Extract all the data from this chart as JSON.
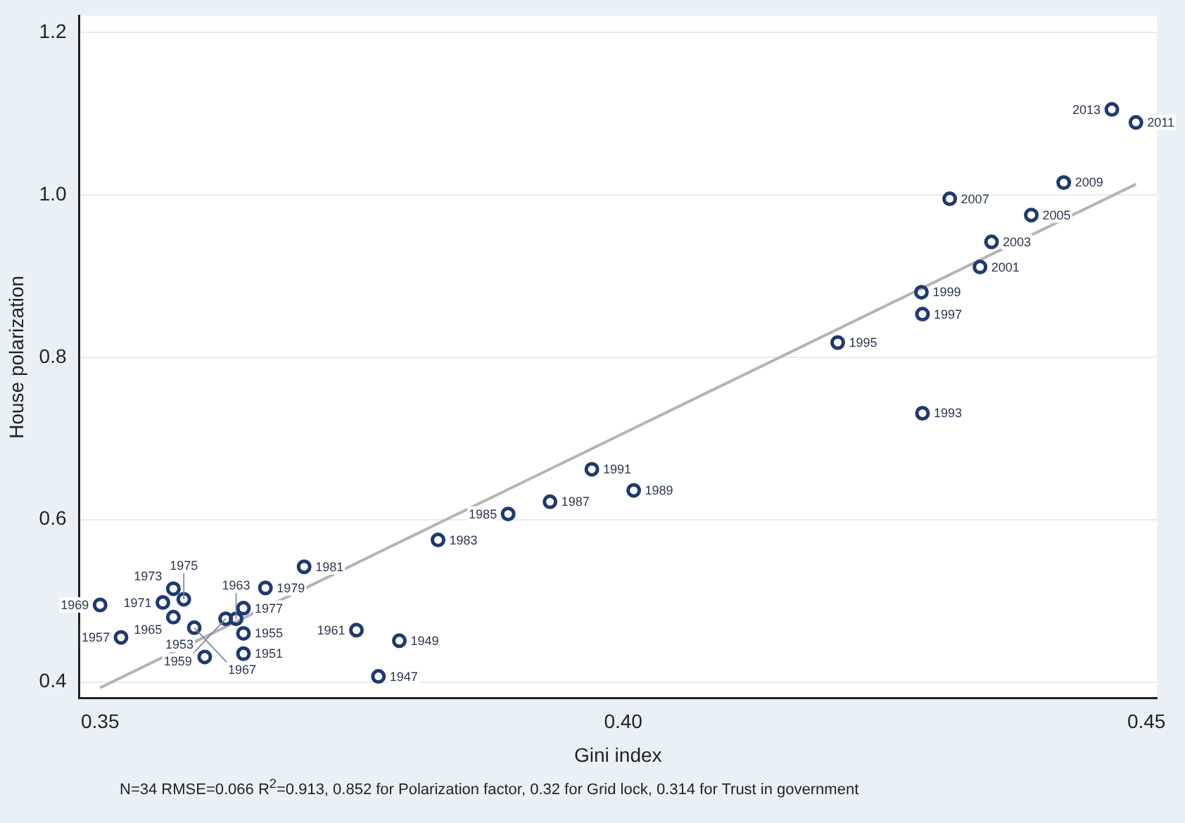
{
  "chart_data": {
    "type": "scatter",
    "xlabel": "Gini index",
    "ylabel": "House polarization",
    "xlim": [
      0.348,
      0.451
    ],
    "ylim": [
      0.38,
      1.22
    ],
    "xticks": [
      0.35,
      {
        "value": 0.4,
        "label": "0.40"
      },
      0.45
    ],
    "yticks": [
      0.4,
      0.6,
      0.8,
      {
        "value": 1.0,
        "label": "1.0"
      },
      1.2
    ],
    "grid": "y",
    "legend": false,
    "marker": "circle",
    "series": [
      {
        "type": "scatter",
        "color": "#1f3a6e",
        "x": [
          0.35,
          0.352,
          0.357,
          0.356,
          0.358,
          0.357,
          0.359,
          0.36,
          0.362,
          0.363,
          0.3637,
          0.3658,
          0.3637,
          0.3637,
          0.3695,
          0.3745,
          0.3786,
          0.3766,
          0.3823,
          0.389,
          0.393,
          0.397,
          0.401,
          0.4205,
          0.4286,
          0.4285,
          0.4341,
          0.4352,
          0.439,
          0.4312,
          0.4421,
          0.449,
          0.4467,
          0.4286
        ],
        "values": [
          0.495,
          0.455,
          0.515,
          0.498,
          0.502,
          0.48,
          0.467,
          0.431,
          0.478,
          0.478,
          0.491,
          0.516,
          0.46,
          0.435,
          0.542,
          0.464,
          0.451,
          0.407,
          0.575,
          0.607,
          0.622,
          0.662,
          0.636,
          0.818,
          0.853,
          0.88,
          0.911,
          0.942,
          0.975,
          0.995,
          1.015,
          1.089,
          1.105,
          0.731
        ]
      },
      {
        "type": "line",
        "color": "#b4b4b4",
        "marker": "none",
        "x": [
          0.35,
          0.449
        ],
        "values": [
          0.393,
          1.013
        ]
      }
    ],
    "annotations": [
      {
        "text": "1969",
        "x": 0.35,
        "y": 0.495
      },
      {
        "text": "1957",
        "x": 0.352,
        "y": 0.455
      },
      {
        "text": "1973",
        "x": 0.357,
        "y": 0.515
      },
      {
        "text": "1971",
        "x": 0.356,
        "y": 0.498
      },
      {
        "text": "1975",
        "x": 0.358,
        "y": 0.502
      },
      {
        "text": "1965",
        "x": 0.357,
        "y": 0.48
      },
      {
        "text": "1967",
        "x": 0.359,
        "y": 0.467
      },
      {
        "text": "1953",
        "x": 0.36,
        "y": 0.431
      },
      {
        "text": "1959",
        "x": 0.362,
        "y": 0.478
      },
      {
        "text": "1963",
        "x": 0.363,
        "y": 0.478
      },
      {
        "text": "1977",
        "x": 0.3637,
        "y": 0.491
      },
      {
        "text": "1979",
        "x": 0.3658,
        "y": 0.516
      },
      {
        "text": "1955",
        "x": 0.3637,
        "y": 0.46
      },
      {
        "text": "1951",
        "x": 0.3637,
        "y": 0.435
      },
      {
        "text": "1981",
        "x": 0.3695,
        "y": 0.542
      },
      {
        "text": "1961",
        "x": 0.3745,
        "y": 0.464
      },
      {
        "text": "1949",
        "x": 0.3786,
        "y": 0.451
      },
      {
        "text": "1947",
        "x": 0.3766,
        "y": 0.407
      },
      {
        "text": "1983",
        "x": 0.3823,
        "y": 0.575
      },
      {
        "text": "1985",
        "x": 0.389,
        "y": 0.607
      },
      {
        "text": "1987",
        "x": 0.393,
        "y": 0.622
      },
      {
        "text": "1991",
        "x": 0.397,
        "y": 0.662
      },
      {
        "text": "1989",
        "x": 0.401,
        "y": 0.636
      },
      {
        "text": "1995",
        "x": 0.4205,
        "y": 0.818
      },
      {
        "text": "1997",
        "x": 0.4286,
        "y": 0.853
      },
      {
        "text": "1999",
        "x": 0.4285,
        "y": 0.88
      },
      {
        "text": "2001",
        "x": 0.4341,
        "y": 0.911
      },
      {
        "text": "2003",
        "x": 0.4352,
        "y": 0.942
      },
      {
        "text": "2005",
        "x": 0.439,
        "y": 0.975
      },
      {
        "text": "2007",
        "x": 0.4312,
        "y": 0.995
      },
      {
        "text": "2009",
        "x": 0.4421,
        "y": 1.015
      },
      {
        "text": "2011",
        "x": 0.449,
        "y": 1.089
      },
      {
        "text": "2013",
        "x": 0.4467,
        "y": 1.105
      },
      {
        "text": "1993",
        "x": 0.4286,
        "y": 0.731
      },
      "N=34 RMSE=0.066 R$^{2}$=0.913, 0.852 for Polarization factor, 0.32 for Grid lock, 0.314 for Trust in government"
    ]
  }
}
